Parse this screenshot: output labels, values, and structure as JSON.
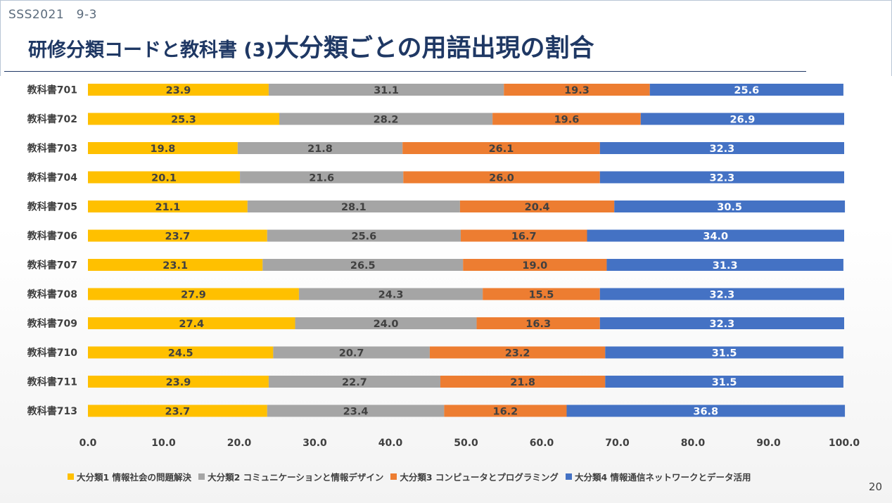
{
  "header": {
    "session": "SSS2021　9-3",
    "title_part1": "研修分類コードと教科書 (3)",
    "title_part2": "大分類ごとの用語出現の割合"
  },
  "page_number": "20",
  "chart_data": {
    "type": "bar",
    "orientation": "horizontal",
    "stacked": true,
    "categories": [
      "教科書701",
      "教科書702",
      "教科書703",
      "教科書704",
      "教科書705",
      "教科書706",
      "教科書707",
      "教科書708",
      "教科書709",
      "教科書710",
      "教科書711",
      "教科書713"
    ],
    "series": [
      {
        "name": "大分類1 情報社会の問題解決",
        "color": "#ffc000",
        "label_color": "#404040",
        "values": [
          23.9,
          25.3,
          19.8,
          20.1,
          21.1,
          23.7,
          23.1,
          27.9,
          27.4,
          24.5,
          23.9,
          23.7
        ]
      },
      {
        "name": "大分類2 コミュニケーションと情報デザイン",
        "color": "#a5a5a5",
        "label_color": "#404040",
        "values": [
          31.1,
          28.2,
          21.8,
          21.6,
          28.1,
          25.6,
          26.5,
          24.3,
          24.0,
          20.7,
          22.7,
          23.4
        ]
      },
      {
        "name": "大分類3 コンピュータとプログラミング",
        "color": "#ed7d31",
        "label_color": "#404040",
        "values": [
          19.3,
          19.6,
          26.1,
          26.0,
          20.4,
          16.7,
          19.0,
          15.5,
          16.3,
          23.2,
          21.8,
          16.2
        ]
      },
      {
        "name": "大分類4 情報通信ネットワークとデータ活用",
        "color": "#4472c4",
        "label_color": "#ffffff",
        "values": [
          25.6,
          26.9,
          32.3,
          32.3,
          30.5,
          34.0,
          31.3,
          32.3,
          32.3,
          31.5,
          31.5,
          36.8
        ]
      }
    ],
    "xlim": [
      0,
      100
    ],
    "xticks": [
      "0.0",
      "10.0",
      "20.0",
      "30.0",
      "40.0",
      "50.0",
      "60.0",
      "70.0",
      "80.0",
      "90.0",
      "100.0"
    ],
    "legend_position": "bottom",
    "grid": false
  }
}
